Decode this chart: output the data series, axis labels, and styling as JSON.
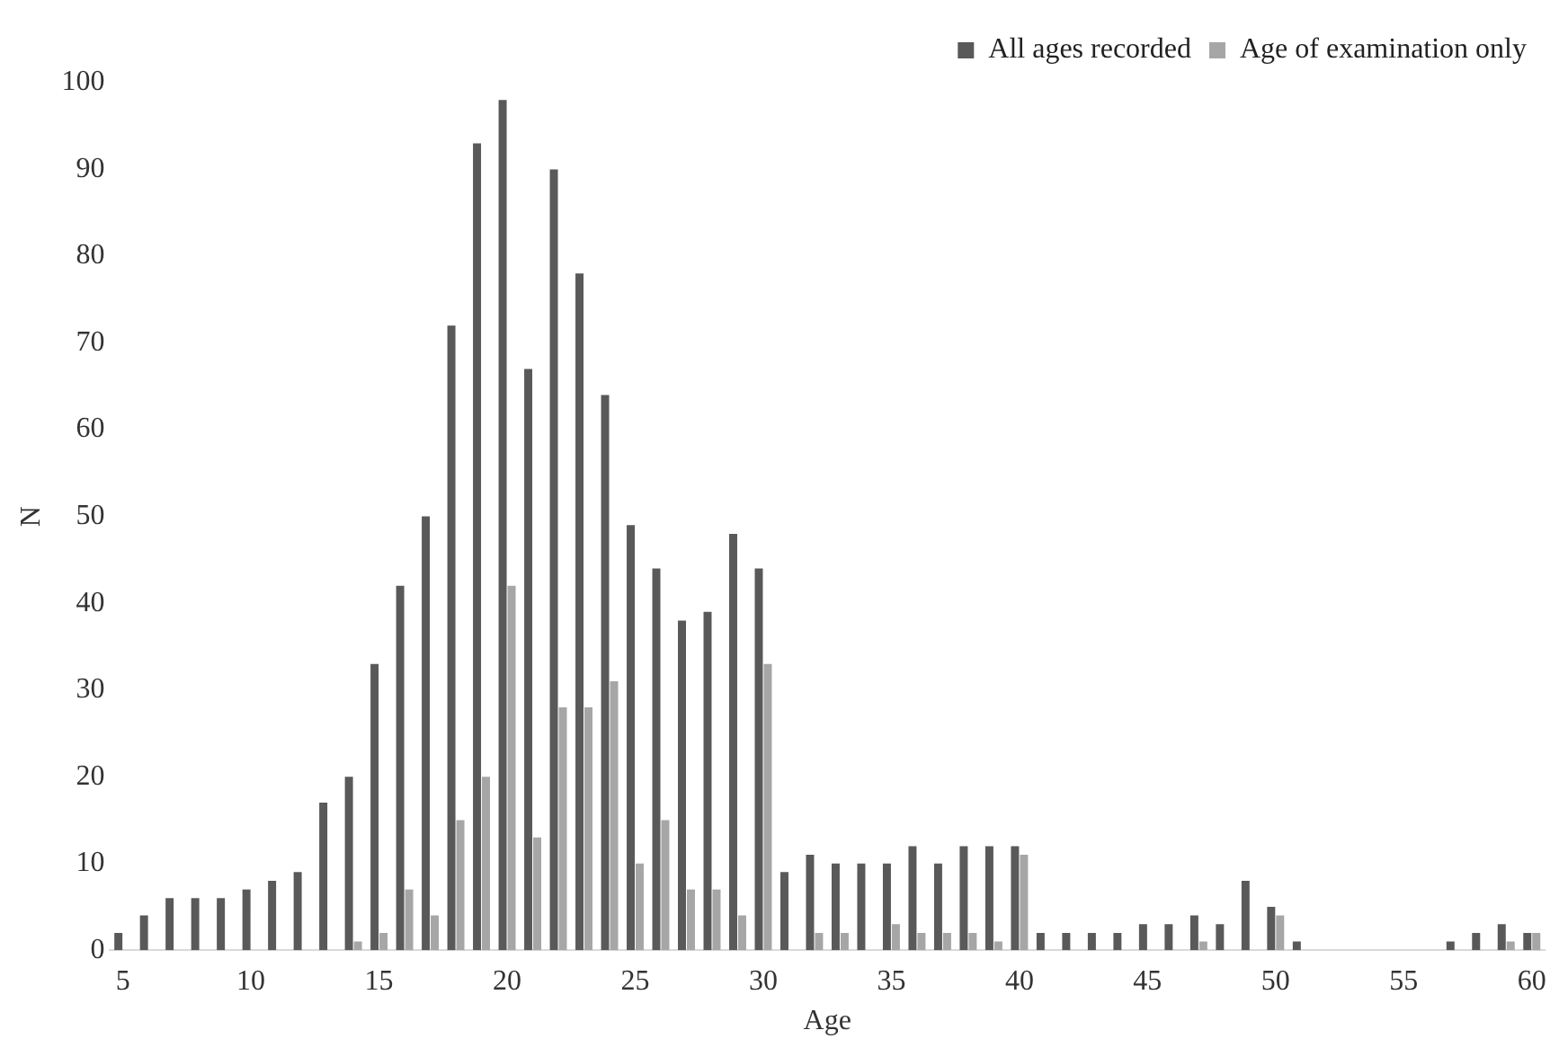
{
  "chart_data": {
    "type": "bar",
    "xlabel": "Age",
    "ylabel": "N",
    "categories": [
      "5",
      null,
      null,
      null,
      null,
      "10",
      null,
      null,
      null,
      null,
      "15",
      null,
      null,
      null,
      null,
      "20",
      null,
      null,
      null,
      null,
      "25",
      null,
      null,
      null,
      null,
      "30",
      null,
      null,
      null,
      null,
      "35",
      null,
      null,
      null,
      null,
      "40",
      null,
      null,
      null,
      null,
      "45",
      null,
      null,
      null,
      null,
      "50",
      null,
      null,
      null,
      null,
      "55",
      null,
      null,
      null,
      null,
      "60"
    ],
    "series": [
      {
        "name": "All ages recorded",
        "color": "#595959",
        "values": [
          2,
          4,
          6,
          6,
          6,
          7,
          8,
          9,
          17,
          20,
          33,
          42,
          50,
          72,
          93,
          98,
          67,
          90,
          78,
          64,
          49,
          44,
          38,
          39,
          48,
          44,
          9,
          11,
          10,
          10,
          10,
          12,
          10,
          12,
          12,
          12,
          2,
          2,
          2,
          2,
          3,
          3,
          4,
          3,
          8,
          5,
          1,
          0,
          0,
          0,
          0,
          0,
          1,
          2,
          3,
          2
        ]
      },
      {
        "name": "Age of examination only",
        "color": "#a6a6a6",
        "values": [
          0,
          0,
          0,
          0,
          0,
          0,
          0,
          0,
          0,
          1,
          2,
          7,
          4,
          15,
          20,
          42,
          13,
          28,
          28,
          31,
          10,
          15,
          7,
          7,
          4,
          33,
          0,
          2,
          2,
          0,
          3,
          2,
          2,
          2,
          1,
          11,
          0,
          0,
          0,
          0,
          0,
          0,
          1,
          0,
          0,
          4,
          0,
          0,
          0,
          0,
          0,
          0,
          0,
          0,
          1,
          2
        ]
      }
    ],
    "ylim": [
      0,
      100
    ],
    "yticks": [
      0,
      10,
      20,
      30,
      40,
      50,
      60,
      70,
      80,
      90,
      100
    ],
    "grid": false,
    "legend": "top right"
  }
}
